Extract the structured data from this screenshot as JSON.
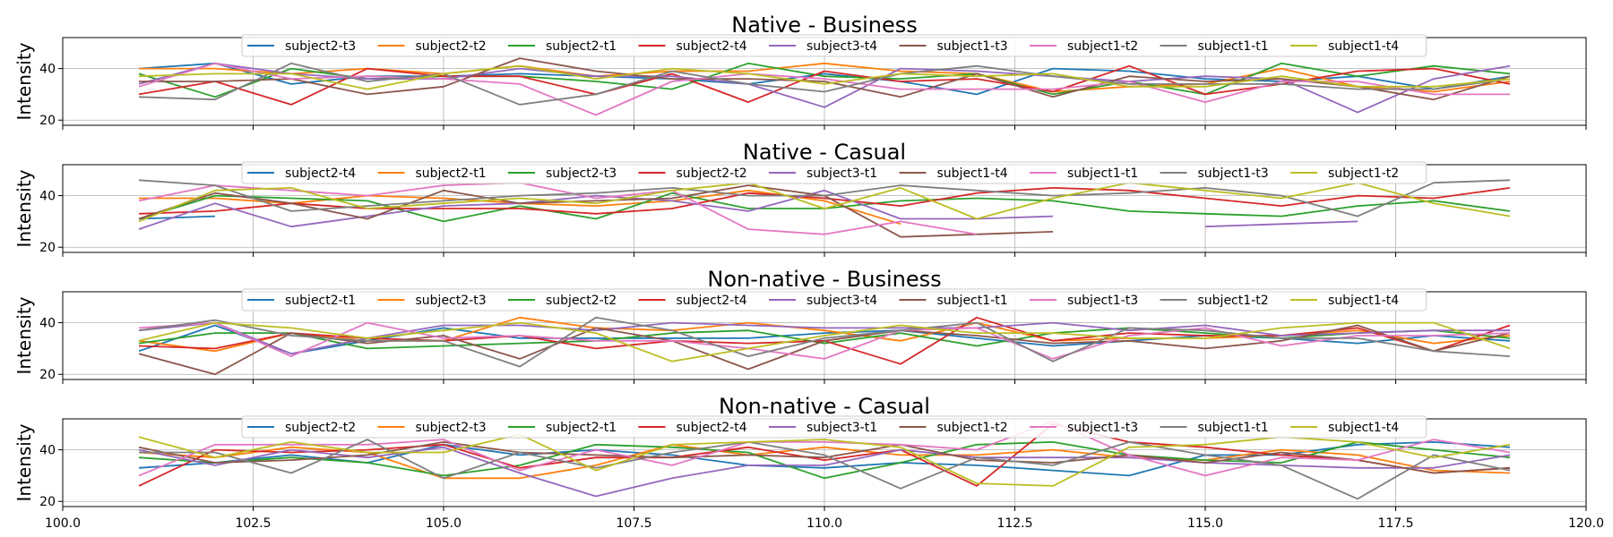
{
  "chart_data": {
    "type": "line",
    "shared_xlim": [
      100.0,
      120.0
    ],
    "x_tick_labels": [
      "100.0",
      "102.5",
      "105.0",
      "107.5",
      "110.0",
      "112.5",
      "115.0",
      "117.5",
      "120.0"
    ],
    "grid": true,
    "legend_placement": "top-center",
    "series_colors": {
      "subject2-t1": "#1f77b4",
      "subject2-t2": "#ff7f0e",
      "subject2-t3": "#2ca02c",
      "subject2-t4": "#d62728",
      "subject3-t4": "#9467bd",
      "subject1-t3": "#8c564b",
      "subject1-t2": "#e377c2",
      "subject1-t1": "#7f7f7f",
      "subject1-t4": "#bcbd22"
    },
    "panels": [
      {
        "title": "Native - Business",
        "ylabel": "Intensity",
        "ylim": [
          18,
          52
        ],
        "y_ticks": [
          20,
          40
        ],
        "x": [
          101,
          102,
          103,
          104,
          105,
          106,
          107,
          108,
          109,
          110,
          111,
          112,
          113,
          114,
          115,
          116,
          117,
          118,
          119
        ],
        "series": [
          {
            "name": "subject2-t3",
            "color": "#1f77b4",
            "values": [
              40,
              42,
              34,
              37,
              37,
              38,
              37,
              36,
              34,
              38,
              35,
              30,
              40,
              39,
              36,
              35,
              37,
              32,
              37
            ]
          },
          {
            "name": "subject2-t2",
            "color": "#ff7f0e",
            "values": [
              40,
              40,
              38,
              40,
              38,
              41,
              37,
              39,
              39,
              42,
              39,
              38,
              31,
              33,
              34,
              40,
              33,
              31,
              35
            ]
          },
          {
            "name": "subject2-t1",
            "color": "#2ca02c",
            "values": [
              38,
              29,
              40,
              36,
              37,
              37,
              35,
              32,
              42,
              37,
              36,
              38,
              30,
              35,
              30,
              42,
              37,
              41,
              38
            ]
          },
          {
            "name": "subject2-t4",
            "color": "#d62728",
            "values": [
              30,
              35,
              26,
              40,
              37,
              37,
              30,
              38,
              27,
              39,
              35,
              36,
              31,
              41,
              30,
              34,
              39,
              40,
              34
            ]
          },
          {
            "name": "subject3-t4",
            "color": "#9467bd",
            "values": [
              34,
              42,
              38,
              36,
              36,
              40,
              37,
              37,
              34,
              25,
              40,
              39,
              37,
              35,
              37,
              36,
              23,
              36,
              41
            ]
          },
          {
            "name": "subject1-t3",
            "color": "#8c564b",
            "values": [
              35,
              35,
              36,
              30,
              33,
              44,
              39,
              36,
              36,
              35,
              29,
              38,
              29,
              37,
              35,
              36,
              33,
              28,
              37
            ]
          },
          {
            "name": "subject1-t2",
            "color": "#e377c2",
            "values": [
              33,
              42,
              36,
              37,
              36,
              34,
              22,
              35,
              38,
              36,
              32,
              32,
              32,
              35,
              27,
              35,
              35,
              30,
              30
            ]
          },
          {
            "name": "subject1-t1",
            "color": "#7f7f7f",
            "values": [
              29,
              28,
              42,
              35,
              38,
              26,
              30,
              39,
              34,
              31,
              38,
              41,
              37,
              34,
              34,
              34,
              32,
              32,
              36
            ]
          },
          {
            "name": "subject1-t4",
            "color": "#bcbd22",
            "values": [
              37,
              38,
              38,
              32,
              38,
              41,
              36,
              40,
              38,
              34,
              38,
              37,
              38,
              33,
              33,
              37,
              33,
              33,
              36
            ]
          }
        ]
      },
      {
        "title": "Native - Casual",
        "ylabel": "Intensity",
        "ylim": [
          18,
          52
        ],
        "y_ticks": [
          20,
          40
        ],
        "x": [
          101,
          102,
          103,
          104,
          105,
          106,
          107,
          108,
          109,
          110,
          111,
          112,
          113,
          114,
          115,
          116,
          117,
          118,
          119
        ],
        "series": [
          {
            "name": "subject2-t4",
            "color": "#1f77b4",
            "values": [
              31,
              32,
              null,
              null,
              null,
              null,
              null,
              null,
              null,
              null,
              null,
              null,
              null,
              null,
              null,
              null,
              null,
              null,
              null
            ]
          },
          {
            "name": "subject2-t1",
            "color": "#ff7f0e",
            "values": [
              39,
              39,
              37,
              40,
              39,
              37,
              36,
              38,
              42,
              38,
              29,
              null,
              null,
              null,
              null,
              null,
              null,
              null,
              null
            ]
          },
          {
            "name": "subject2-t3",
            "color": "#2ca02c",
            "values": [
              31,
              40,
              39,
              38,
              30,
              36,
              31,
              41,
              35,
              35,
              38,
              39,
              38,
              34,
              33,
              32,
              36,
              38,
              34
            ]
          },
          {
            "name": "subject2-t2",
            "color": "#d62728",
            "values": [
              33,
              34,
              37,
              35,
              35,
              35,
              33,
              35,
              41,
              39,
              36,
              41,
              43,
              42,
              39,
              36,
              40,
              39,
              43
            ]
          },
          {
            "name": "subject3-t1",
            "color": "#9467bd",
            "values": [
              27,
              37,
              28,
              32,
              36,
              37,
              40,
              38,
              34,
              42,
              31,
              31,
              32,
              null,
              28,
              29,
              30,
              null,
              null
            ]
          },
          {
            "name": "subject1-t4",
            "color": "#8c564b",
            "values": [
              31,
              41,
              37,
              31,
              42,
              37,
              38,
              39,
              44,
              40,
              24,
              25,
              26,
              null,
              null,
              null,
              null,
              null,
              null
            ]
          },
          {
            "name": "subject1-t1",
            "color": "#e377c2",
            "values": [
              38,
              44,
              42,
              40,
              44,
              45,
              39,
              42,
              27,
              25,
              30,
              25,
              null,
              null,
              null,
              null,
              null,
              null,
              null
            ]
          },
          {
            "name": "subject1-t3",
            "color": "#7f7f7f",
            "values": [
              46,
              44,
              34,
              36,
              38,
              40,
              41,
              43,
              40,
              40,
              44,
              42,
              40,
              41,
              43,
              40,
              32,
              45,
              46
            ]
          },
          {
            "name": "subject1-t2",
            "color": "#bcbd22",
            "values": [
              30,
              42,
              43,
              35,
              37,
              39,
              37,
              42,
              45,
              35,
              43,
              31,
              39,
              45,
              42,
              39,
              45,
              37,
              32
            ]
          }
        ]
      },
      {
        "title": "Non-native - Business",
        "ylabel": "Intensity",
        "ylim": [
          18,
          52
        ],
        "y_ticks": [
          20,
          40
        ],
        "x": [
          101,
          102,
          103,
          104,
          105,
          106,
          107,
          108,
          109,
          110,
          111,
          112,
          113,
          114,
          115,
          116,
          117,
          118,
          119
        ],
        "series": [
          {
            "name": "subject2-t1",
            "color": "#1f77b4",
            "values": [
              29,
              39,
              28,
              33,
              38,
              34,
              34,
              34,
              34,
              36,
              37,
              34,
              31,
              33,
              35,
              34,
              32,
              35,
              33
            ]
          },
          {
            "name": "subject2-t3",
            "color": "#ff7f0e",
            "values": [
              33,
              29,
              36,
              33,
              33,
              42,
              38,
              37,
              40,
              37,
              33,
              40,
              33,
              34,
              34,
              35,
              37,
              32,
              35
            ]
          },
          {
            "name": "subject2-t2",
            "color": "#2ca02c",
            "values": [
              32,
              36,
              36,
              30,
              31,
              32,
              33,
              36,
              37,
              32,
              36,
              31,
              36,
              38,
              36,
              34,
              36,
              37,
              34
            ]
          },
          {
            "name": "subject2-t4",
            "color": "#d62728",
            "values": [
              31,
              30,
              36,
              34,
              33,
              35,
              30,
              33,
              32,
              33,
              24,
              42,
              33,
              36,
              35,
              35,
              38,
              29,
              39
            ]
          },
          {
            "name": "subject3-t4",
            "color": "#9467bd",
            "values": [
              37,
              40,
              28,
              34,
              39,
              39,
              37,
              40,
              39,
              38,
              38,
              38,
              40,
              37,
              39,
              35,
              36,
              37,
              37
            ]
          },
          {
            "name": "subject1-t1",
            "color": "#8c564b",
            "values": [
              28,
              20,
              36,
              32,
              35,
              26,
              38,
              33,
              22,
              33,
              37,
              35,
              32,
              33,
              30,
              33,
              39,
              29,
              36
            ]
          },
          {
            "name": "subject1-t3",
            "color": "#e377c2",
            "values": [
              38,
              40,
              27,
              40,
              34,
              35,
              33,
              33,
              30,
              26,
              37,
              38,
              26,
              35,
              38,
              31,
              35,
              35,
              36
            ]
          },
          {
            "name": "subject1-t2",
            "color": "#7f7f7f",
            "values": [
              37,
              41,
              35,
              33,
              33,
              23,
              42,
              37,
              27,
              34,
              37,
              40,
              25,
              38,
              37,
              34,
              34,
              29,
              27
            ]
          },
          {
            "name": "subject1-t4",
            "color": "#bcbd22",
            "values": [
              33,
              40,
              38,
              34,
              37,
              40,
              36,
              25,
              30,
              35,
              39,
              36,
              36,
              34,
              34,
              38,
              40,
              40,
              30
            ]
          }
        ]
      },
      {
        "title": "Non-native - Casual",
        "ylabel": "Intensity",
        "ylim": [
          18,
          52
        ],
        "y_ticks": [
          20,
          40
        ],
        "x": [
          101,
          102,
          103,
          104,
          105,
          106,
          107,
          108,
          109,
          110,
          111,
          112,
          113,
          114,
          115,
          116,
          117,
          118,
          119
        ],
        "series": [
          {
            "name": "subject2-t2",
            "color": "#1f77b4",
            "values": [
              33,
              35,
              38,
              35,
              42,
              38,
              40,
              38,
              34,
              33,
              35,
              34,
              32,
              30,
              38,
              38,
              42,
              43,
              41
            ]
          },
          {
            "name": "subject2-t3",
            "color": "#ff7f0e",
            "values": [
              39,
              37,
              41,
              39,
              29,
              29,
              34,
              42,
              38,
              41,
              38,
              38,
              40,
              37,
              36,
              40,
              38,
              32,
              31
            ]
          },
          {
            "name": "subject2-t1",
            "color": "#2ca02c",
            "values": [
              37,
              35,
              37,
              35,
              30,
              34,
              42,
              41,
              39,
              29,
              35,
              42,
              43,
              38,
              36,
              35,
              43,
              40,
              37
            ]
          },
          {
            "name": "subject2-t4",
            "color": "#d62728",
            "values": [
              26,
              40,
              39,
              40,
              42,
              33,
              37,
              37,
              41,
              36,
              40,
              26,
              50,
              43,
              41,
              38,
              36,
              31,
              33
            ]
          },
          {
            "name": "subject3-t1",
            "color": "#9467bd",
            "values": [
              40,
              34,
              40,
              37,
              41,
              31,
              22,
              29,
              34,
              34,
              40,
              37,
              37,
              37,
              35,
              34,
              33,
              33,
              38
            ]
          },
          {
            "name": "subject1-t2",
            "color": "#8c564b",
            "values": [
              41,
              35,
              36,
              38,
              43,
              39,
              38,
              37,
              38,
              37,
              42,
              36,
              35,
              38,
              35,
              39,
              36,
              31,
              33
            ]
          },
          {
            "name": "subject1-t3",
            "color": "#e377c2",
            "values": [
              30,
              42,
              42,
              42,
              44,
              32,
              40,
              34,
              43,
              43,
              42,
              40,
              51,
              38,
              30,
              37,
              36,
              44,
              39
            ]
          },
          {
            "name": "subject1-t1",
            "color": "#7f7f7f",
            "values": [
              39,
              39,
              31,
              44,
              29,
              39,
              33,
              39,
              43,
              38,
              25,
              37,
              34,
              43,
              38,
              34,
              21,
              38,
              32
            ]
          },
          {
            "name": "subject1-t4",
            "color": "#bcbd22",
            "values": [
              45,
              37,
              43,
              39,
              39,
              46,
              32,
              42,
              43,
              44,
              41,
              27,
              26,
              41,
              42,
              45,
              43,
              37,
              42
            ]
          }
        ]
      }
    ]
  }
}
